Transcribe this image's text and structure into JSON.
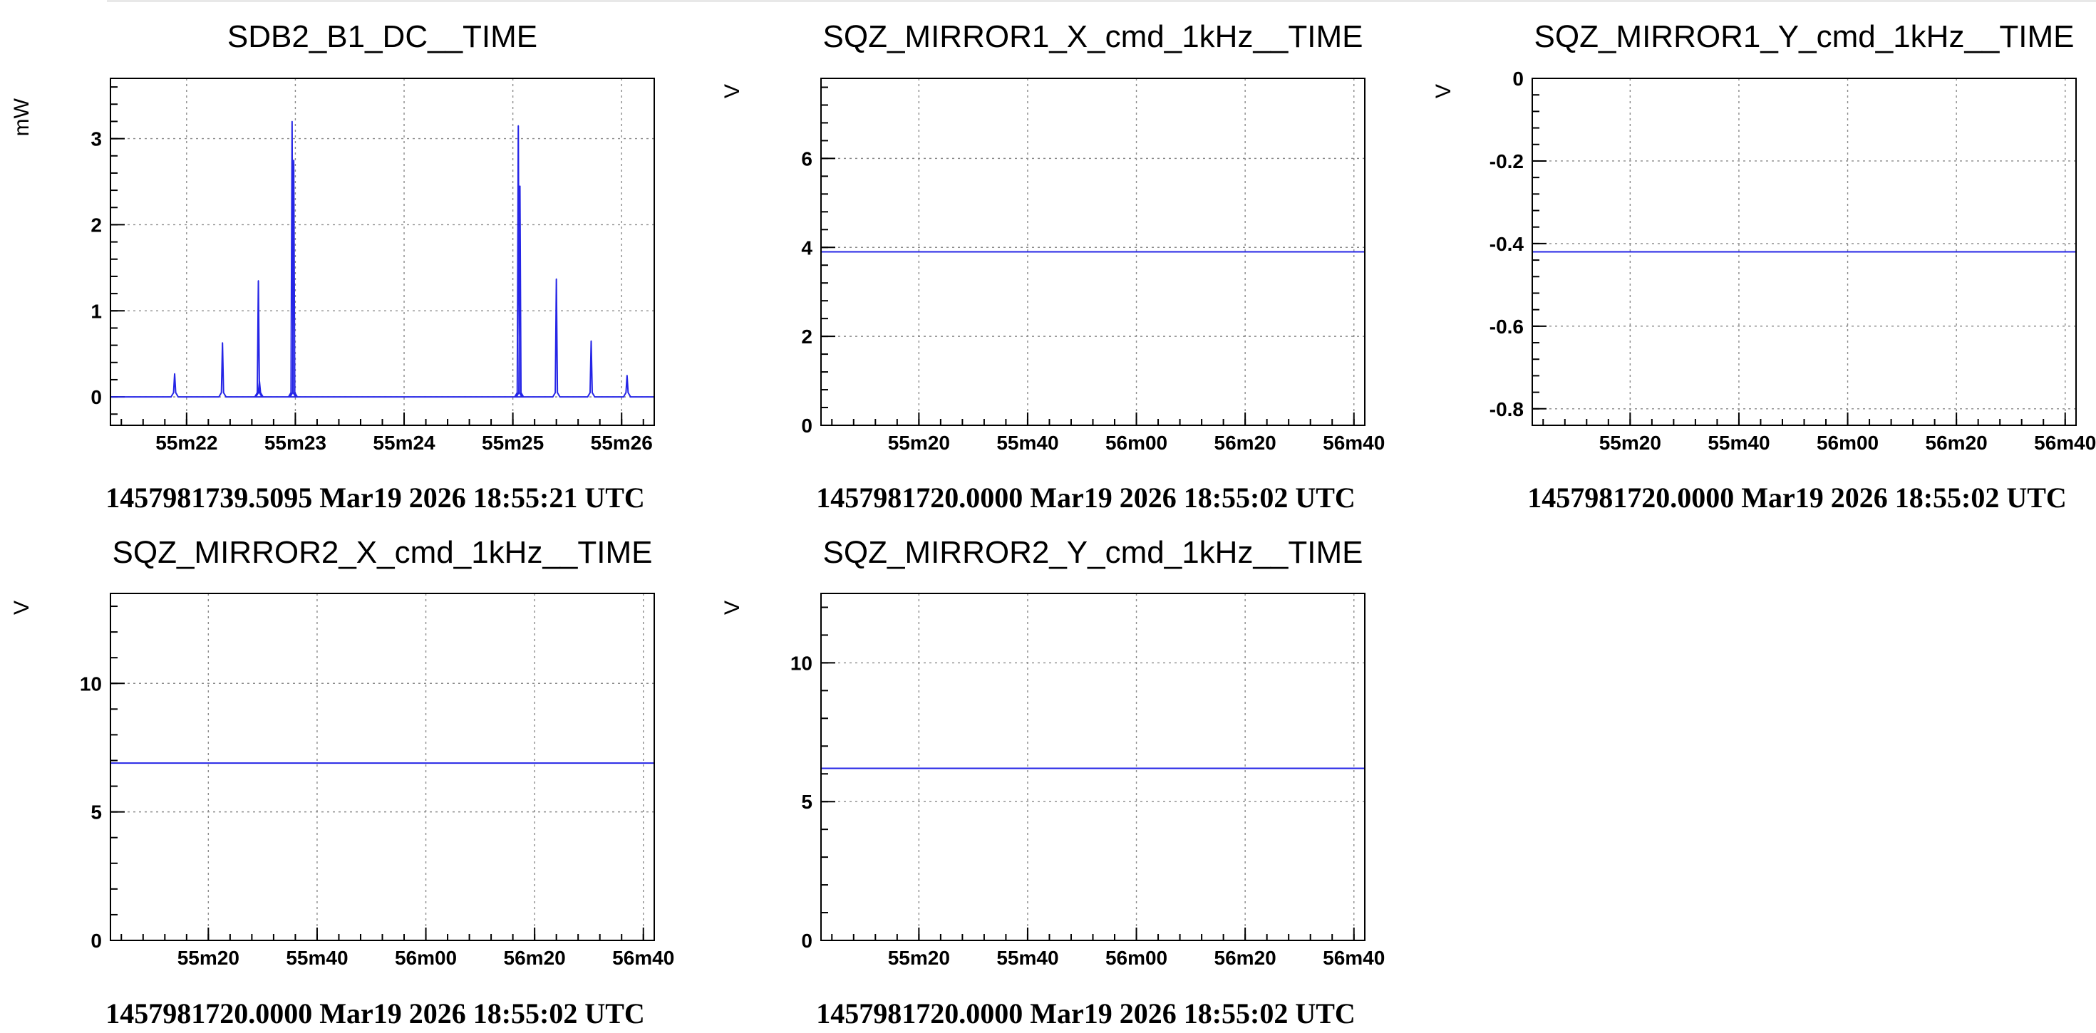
{
  "colors": {
    "series": "#2525e6",
    "grid": "#8a8a8a",
    "axes": "#000000",
    "background": "#ffffff"
  },
  "chart_data": [
    {
      "type": "line",
      "title": "SDB2_B1_DC__TIME",
      "ylabel": "mW",
      "xlabel": "1457981739.5095 Mar19 2026 18:55:21 UTC",
      "xlim": [
        21.3,
        26.3
      ],
      "ylim": [
        -0.33,
        3.7
      ],
      "xticks": [
        {
          "v": 22,
          "label": "55m22"
        },
        {
          "v": 23,
          "label": "55m23"
        },
        {
          "v": 24,
          "label": "55m24"
        },
        {
          "v": 25,
          "label": "55m25"
        },
        {
          "v": 26,
          "label": "55m26"
        }
      ],
      "yticks": [
        {
          "v": 0,
          "label": "0"
        },
        {
          "v": 1,
          "label": "1"
        },
        {
          "v": 2,
          "label": "2"
        },
        {
          "v": 3,
          "label": "3"
        }
      ],
      "grid": true,
      "baseline": 0,
      "peaks": [
        {
          "x": 21.89,
          "y": 0.27
        },
        {
          "x": 22.33,
          "y": 0.63
        },
        {
          "x": 22.66,
          "y": 1.35
        },
        {
          "x": 22.67,
          "y": 0.18
        },
        {
          "x": 22.97,
          "y": 3.2
        },
        {
          "x": 22.985,
          "y": 2.75
        },
        {
          "x": 25.05,
          "y": 3.15
        },
        {
          "x": 25.065,
          "y": 2.45
        },
        {
          "x": 25.4,
          "y": 1.37
        },
        {
          "x": 25.72,
          "y": 0.65
        },
        {
          "x": 26.05,
          "y": 0.25
        }
      ]
    },
    {
      "type": "line",
      "title": "SQZ_MIRROR1_X_cmd_1kHz__TIME",
      "ylabel": "V",
      "xlabel": "1457981720.0000 Mar19 2026 18:55:02 UTC",
      "xlim": [
        2,
        102
      ],
      "ylim": [
        0,
        7.8
      ],
      "xticks": [
        {
          "v": 20,
          "label": "55m20"
        },
        {
          "v": 40,
          "label": "55m40"
        },
        {
          "v": 60,
          "label": "56m00"
        },
        {
          "v": 80,
          "label": "56m20"
        },
        {
          "v": 100,
          "label": "56m40"
        }
      ],
      "yticks": [
        {
          "v": 0,
          "label": "0"
        },
        {
          "v": 2,
          "label": "2"
        },
        {
          "v": 4,
          "label": "4"
        },
        {
          "v": 6,
          "label": "6"
        }
      ],
      "grid": true,
      "value": 3.9
    },
    {
      "type": "line",
      "title": "SQZ_MIRROR1_Y_cmd_1kHz__TIME",
      "ylabel": "V",
      "xlabel": "1457981720.0000 Mar19 2026 18:55:02 UTC",
      "xlim": [
        2,
        102
      ],
      "ylim": [
        -0.84,
        0
      ],
      "xticks": [
        {
          "v": 20,
          "label": "55m20"
        },
        {
          "v": 40,
          "label": "55m40"
        },
        {
          "v": 60,
          "label": "56m00"
        },
        {
          "v": 80,
          "label": "56m20"
        },
        {
          "v": 100,
          "label": "56m40"
        }
      ],
      "yticks": [
        {
          "v": 0,
          "label": "0"
        },
        {
          "v": -0.2,
          "label": "-0.2"
        },
        {
          "v": -0.4,
          "label": "-0.4"
        },
        {
          "v": -0.6,
          "label": "-0.6"
        },
        {
          "v": -0.8,
          "label": "-0.8"
        }
      ],
      "grid": true,
      "value": -0.42
    },
    {
      "type": "line",
      "title": "SQZ_MIRROR2_X_cmd_1kHz__TIME",
      "ylabel": "V",
      "xlabel": "1457981720.0000 Mar19 2026 18:55:02 UTC",
      "xlim": [
        2,
        102
      ],
      "ylim": [
        0,
        13.5
      ],
      "xticks": [
        {
          "v": 20,
          "label": "55m20"
        },
        {
          "v": 40,
          "label": "55m40"
        },
        {
          "v": 60,
          "label": "56m00"
        },
        {
          "v": 80,
          "label": "56m20"
        },
        {
          "v": 100,
          "label": "56m40"
        }
      ],
      "yticks": [
        {
          "v": 0,
          "label": "0"
        },
        {
          "v": 5,
          "label": "5"
        },
        {
          "v": 10,
          "label": "10"
        }
      ],
      "grid": true,
      "value": 6.9
    },
    {
      "type": "line",
      "title": "SQZ_MIRROR2_Y_cmd_1kHz__TIME",
      "ylabel": "V",
      "xlabel": "1457981720.0000 Mar19 2026 18:55:02 UTC",
      "xlim": [
        2,
        102
      ],
      "ylim": [
        0,
        12.5
      ],
      "xticks": [
        {
          "v": 20,
          "label": "55m20"
        },
        {
          "v": 40,
          "label": "55m40"
        },
        {
          "v": 60,
          "label": "56m00"
        },
        {
          "v": 80,
          "label": "56m20"
        },
        {
          "v": 100,
          "label": "56m40"
        }
      ],
      "yticks": [
        {
          "v": 0,
          "label": "0"
        },
        {
          "v": 5,
          "label": "5"
        },
        {
          "v": 10,
          "label": "10"
        }
      ],
      "grid": true,
      "value": 6.2
    }
  ]
}
